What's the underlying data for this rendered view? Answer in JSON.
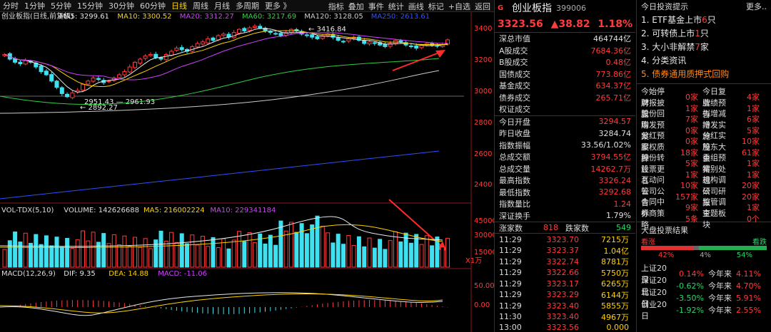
{
  "toolbar": {
    "tabs": [
      {
        "label": "分时"
      },
      {
        "label": "1分钟"
      },
      {
        "label": "5分钟"
      },
      {
        "label": "15分钟"
      },
      {
        "label": "30分钟"
      },
      {
        "label": "60分钟"
      },
      {
        "label": "日线",
        "active": true
      },
      {
        "label": "周线"
      },
      {
        "label": "月线"
      },
      {
        "label": "多周期"
      },
      {
        "label": "更多 》"
      }
    ],
    "right": [
      {
        "label": "指标"
      },
      {
        "label": "叠加"
      },
      {
        "label": "事件"
      },
      {
        "label": "统计"
      },
      {
        "label": "画线"
      },
      {
        "label": "标记"
      },
      {
        "label": "+自选"
      },
      {
        "label": "返回"
      }
    ]
  },
  "chart_data": {
    "type": "candlestick",
    "price_legend": [
      {
        "text": "创业板指(日线,前复权)",
        "color": "#dddddd"
      },
      {
        "text": "MA5: 3299.61",
        "color": "#e8e8e8"
      },
      {
        "text": "MA10: 3300.52",
        "color": "#ffd200"
      },
      {
        "text": "MA20: 3312.27",
        "color": "#d040ff"
      },
      {
        "text": "MA60: 3217.69",
        "color": "#30d040"
      },
      {
        "text": "MA120: 3128.05",
        "color": "#cccccc"
      },
      {
        "text": "MA250: 2613.61",
        "color": "#3050ff"
      }
    ],
    "price_axis": [
      "3400",
      "3200",
      "3000",
      "2800",
      "2600",
      "2400"
    ],
    "annotations": {
      "high": "3416.84",
      "low1": "2951.43",
      "low2": "2961.93",
      "low3": "2892.27"
    },
    "volume_legend": [
      {
        "text": "VOL-TDX(5,10)",
        "color": "#dddddd"
      },
      {
        "text": "VOLUME: 142626688",
        "color": "#dddddd"
      },
      {
        "text": "MA5: 216002224",
        "color": "#ffd200"
      },
      {
        "text": "MA10: 229341184",
        "color": "#d040ff"
      }
    ],
    "volume_axis": [
      "45000",
      "30000",
      "15000",
      "X1万"
    ],
    "macd_legend": [
      {
        "text": "MACD(12,26,9)",
        "color": "#dddddd"
      },
      {
        "text": "DIF: 9.35",
        "color": "#e8e8e8"
      },
      {
        "text": "DEA: 14.88",
        "color": "#ffd200"
      },
      {
        "text": "MACD: -11.06",
        "color": "#d040ff"
      }
    ],
    "macd_axis": [
      "50.00",
      "0.00"
    ]
  },
  "quote": {
    "g": "G",
    "name": "创业板指",
    "code": "399006",
    "price": "3323.56",
    "change": "▲38.82",
    "pct": "1.18%",
    "rows1": [
      {
        "label": "深总市值",
        "value": "464744亿",
        "c": "w"
      },
      {
        "label": "A股成交",
        "value": "7684.36亿",
        "c": "r"
      },
      {
        "label": "B股成交",
        "value": "0.48亿",
        "c": "r"
      },
      {
        "label": "国债成交",
        "value": "773.86亿",
        "c": "r"
      },
      {
        "label": "基金成交",
        "value": "634.37亿",
        "c": "r"
      },
      {
        "label": "债券成交",
        "value": "265.71亿",
        "c": "r"
      },
      {
        "label": "权证成交",
        "value": "",
        "c": "r"
      }
    ],
    "rows2": [
      {
        "label": "今日开盘",
        "value": "3294.57",
        "c": "r"
      },
      {
        "label": "昨日收盘",
        "value": "3284.74",
        "c": "w"
      },
      {
        "label": "指数振幅",
        "value": "33.56/1.02%",
        "c": "w"
      },
      {
        "label": "总成交额",
        "value": "3794.55亿",
        "c": "r"
      },
      {
        "label": "总成交量",
        "value": "14262.7万",
        "c": "r"
      },
      {
        "label": "最高指数",
        "value": "3326.24",
        "c": "r"
      },
      {
        "label": "最低指数",
        "value": "3292.68",
        "c": "r"
      },
      {
        "label": "指数量比",
        "value": "1.24",
        "c": "r"
      },
      {
        "label": "深证换手",
        "value": "1.79%",
        "c": "w"
      }
    ],
    "zd": {
      "up_label": "涨家数",
      "up": "818",
      "down_label": "跌家数",
      "down": "549"
    },
    "ticks": [
      {
        "t": "11:29",
        "p": "3323.70",
        "v": "7215万"
      },
      {
        "t": "11:29",
        "p": "3323.37",
        "v": "1.04亿"
      },
      {
        "t": "11:29",
        "p": "3322.74",
        "v": "8781万"
      },
      {
        "t": "11:29",
        "p": "3322.66",
        "v": "5750万"
      },
      {
        "t": "11:29",
        "p": "3323.17",
        "v": "6265万"
      },
      {
        "t": "11:29",
        "p": "3323.29",
        "v": "6144万"
      },
      {
        "t": "11:29",
        "p": "3323.40",
        "v": "5855万"
      },
      {
        "t": "11:30",
        "p": "3323.40",
        "v": "4967万"
      },
      {
        "t": "13:00",
        "p": "3323.56",
        "v": "0.000"
      }
    ]
  },
  "news": {
    "title": "今日投资提示",
    "more": "更多..",
    "items": [
      {
        "pre": "1. ETF基金上市",
        "num": "6",
        "post": "只"
      },
      {
        "pre": "2. 可转债上市",
        "num": "1",
        "post": "只"
      },
      {
        "pre": "3. 大小非解禁",
        "num": "7",
        "post": "家"
      },
      {
        "pre": "4. 分类资讯",
        "num": "",
        "post": ""
      },
      {
        "pre": "5. 债券通用质押式回购",
        "num": "",
        "post": "",
        "hl": true
      }
    ],
    "stats": [
      {
        "a": "今始停牌",
        "b": "0家",
        "c": "今日复牌",
        "d": "4家"
      },
      {
        "a": "财报披露",
        "b": "1家",
        "c": "业绩预告",
        "d": "1家"
      },
      {
        "a": "股份回购",
        "b": "7家",
        "c": "拟增减持",
        "d": "6家"
      },
      {
        "a": "增发预案",
        "b": "0家",
        "c": "增发实施",
        "d": "5家"
      },
      {
        "a": "分红预案",
        "b": "0家",
        "c": "分红实施",
        "d": "10家"
      },
      {
        "a": "股权质押",
        "b": "18家",
        "c": "股东大会",
        "d": "61家"
      },
      {
        "a": "股份转让",
        "b": "5家",
        "c": "重组预案",
        "d": "1家"
      },
      {
        "a": "股票更名",
        "b": "1家",
        "c": "特别处理",
        "d": "1家"
      },
      {
        "a": "互动问答",
        "b": "10家",
        "c": "机构调研",
        "d": "20家"
      },
      {
        "a": "公司公告",
        "b": "157家",
        "c": "公司研报",
        "d": "20家"
      },
      {
        "a": "合同中标",
        "b": "9家",
        "c": "监管调查",
        "d": "1家"
      },
      {
        "a": "券商策略",
        "b": "5条",
        "c": "主题板块",
        "d": "0个"
      }
    ],
    "sentiment": {
      "title": "大盘投票结果",
      "bull": "看涨",
      "bear": "看跌",
      "bull_pct": "42%",
      "flat_pct": "4%",
      "bear_pct": "54%",
      "bull_v": 42,
      "flat_v": 4,
      "bear_v": 54
    },
    "indices": [
      {
        "n": "上证20日",
        "x": "0.14%",
        "xc": "r",
        "y": "今年来",
        "z": "4.11%"
      },
      {
        "n": "深证20日",
        "x": "-0.62%",
        "xc": "g",
        "y": "今年来",
        "z": "4.70%"
      },
      {
        "n": "北证20日",
        "x": "-3.50%",
        "xc": "g",
        "y": "今年来",
        "z": "5.91%"
      },
      {
        "n": "创业20日",
        "x": "-1.92%",
        "xc": "g",
        "y": "今年来",
        "z": "2.55%"
      }
    ]
  }
}
